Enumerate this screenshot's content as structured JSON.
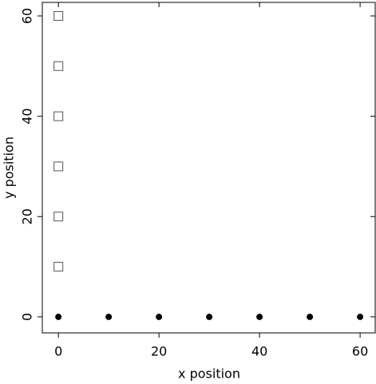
{
  "chart_data": {
    "type": "scatter",
    "xlabel": "x position",
    "ylabel": "y position",
    "xlim": [
      -3.2,
      63
    ],
    "ylim": [
      -3.2,
      62.7
    ],
    "xticks": [
      0,
      20,
      40,
      60
    ],
    "yticks": [
      0,
      20,
      40,
      60
    ],
    "series": [
      {
        "marker": "square",
        "filled": false,
        "color": "#555555",
        "x": [
          0,
          0,
          0,
          0,
          0,
          0
        ],
        "y": [
          10,
          20,
          30,
          40,
          50,
          60
        ]
      },
      {
        "marker": "circle",
        "filled": true,
        "color": "#000000",
        "x": [
          0,
          10,
          20,
          30,
          40,
          50,
          60
        ],
        "y": [
          0,
          0,
          0,
          0,
          0,
          0,
          0
        ]
      }
    ]
  }
}
